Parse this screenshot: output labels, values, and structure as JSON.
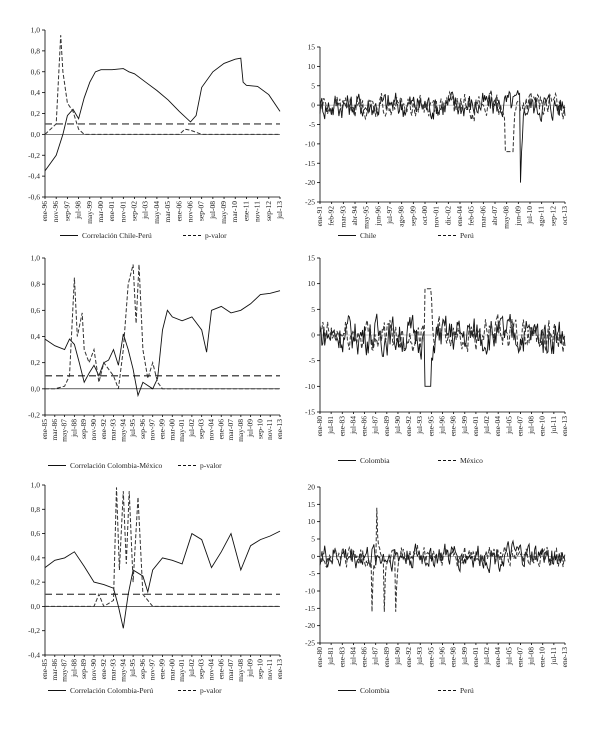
{
  "panels": [
    {
      "id": "p1",
      "chart_data": {
        "type": "line",
        "yticks": [
          "1,0",
          "0,8",
          "0,6",
          "0,4",
          "0,2",
          "0,0",
          "-0,2",
          "-0,4",
          "-0,6"
        ],
        "ylim": [
          -0.6,
          1.0
        ],
        "xlabels": [
          "ene-96",
          "nov-96",
          "sep-97",
          "jul-98",
          "may-99",
          "mar-00",
          "ene-01",
          "nov-01",
          "sep-02",
          "jul-03",
          "may-04",
          "mar-05",
          "ene-06",
          "nov-06",
          "sep-07",
          "jul-08",
          "may-09",
          "mar-10",
          "ene-11",
          "nov-11",
          "sep-12",
          "jul-13"
        ],
        "threshold": 0.1,
        "series": [
          {
            "name": "Correlación Chile-Perú",
            "style": "solid",
            "values": [
              [
                0,
                -0.35
              ],
              [
                1,
                -0.2
              ],
              [
                1.6,
                0.0
              ],
              [
                2,
                0.18
              ],
              [
                2.5,
                0.24
              ],
              [
                3,
                0.15
              ],
              [
                3.5,
                0.35
              ],
              [
                4,
                0.5
              ],
              [
                4.5,
                0.6
              ],
              [
                5,
                0.62
              ],
              [
                6,
                0.62
              ],
              [
                7,
                0.63
              ],
              [
                7.5,
                0.6
              ],
              [
                8,
                0.58
              ],
              [
                9,
                0.5
              ],
              [
                10,
                0.42
              ],
              [
                11,
                0.33
              ],
              [
                12,
                0.22
              ],
              [
                13,
                0.12
              ],
              [
                13.5,
                0.18
              ],
              [
                14,
                0.45
              ],
              [
                15,
                0.6
              ],
              [
                16,
                0.68
              ],
              [
                17,
                0.72
              ],
              [
                17.5,
                0.73
              ],
              [
                17.7,
                0.5
              ],
              [
                18,
                0.47
              ],
              [
                19,
                0.46
              ],
              [
                20,
                0.38
              ],
              [
                21,
                0.22
              ]
            ]
          },
          {
            "name": "p-valor",
            "style": "dashed",
            "values": [
              [
                0,
                0.0
              ],
              [
                1,
                0.1
              ],
              [
                1.4,
                0.95
              ],
              [
                1.6,
                0.6
              ],
              [
                2,
                0.3
              ],
              [
                2.5,
                0.22
              ],
              [
                3,
                0.05
              ],
              [
                3.5,
                0.0
              ],
              [
                12,
                0.0
              ],
              [
                12.5,
                0.05
              ],
              [
                13,
                0.04
              ],
              [
                14,
                0.0
              ],
              [
                21,
                0.0
              ]
            ]
          }
        ]
      }
    },
    {
      "id": "p2",
      "chart_data": {
        "type": "line",
        "yticks": [
          "15",
          "10",
          "5",
          "0",
          "-5",
          "-10",
          "-15",
          "-20",
          "-25"
        ],
        "ylim": [
          -25,
          15
        ],
        "xlabels": [
          "ene-91",
          "feb-92",
          "mar-93",
          "abr-94",
          "may-95",
          "jun-96",
          "jul-97",
          "ago-98",
          "sep-99",
          "oct-00",
          "nov-01",
          "dic-02",
          "ene-04",
          "feb-05",
          "mar-06",
          "abr-07",
          "may-08",
          "jun-09",
          "jul-10",
          "ago-11",
          "sep-12",
          "oct-13"
        ],
        "series": [
          {
            "name": "Chile",
            "style": "solid"
          },
          {
            "name": "Perú",
            "style": "dashed"
          }
        ]
      }
    },
    {
      "id": "p3",
      "chart_data": {
        "type": "line",
        "yticks": [
          "1,0",
          "0,8",
          "0,6",
          "0,4",
          "0,2",
          "0,0",
          "-0,2"
        ],
        "ylim": [
          -0.2,
          1.0
        ],
        "xlabels": [
          "ene-85",
          "mar-86",
          "may-87",
          "jul-88",
          "sep-89",
          "nov-90",
          "ene-92",
          "mar-93",
          "may-94",
          "jul-95",
          "sep-96",
          "nov-97",
          "ene-99",
          "mar-00",
          "may-01",
          "jul-02",
          "sep-03",
          "nov-04",
          "ene-06",
          "mar-07",
          "may-08",
          "jul-09",
          "sep-10",
          "nov-11",
          "ene-13"
        ],
        "threshold": 0.1,
        "series": [
          {
            "name": "Correlación Colombia-México",
            "style": "solid",
            "values": [
              [
                0,
                0.38
              ],
              [
                1,
                0.33
              ],
              [
                2,
                0.3
              ],
              [
                2.5,
                0.38
              ],
              [
                3,
                0.34
              ],
              [
                3.5,
                0.2
              ],
              [
                4,
                0.05
              ],
              [
                4.5,
                0.12
              ],
              [
                5,
                0.18
              ],
              [
                5.5,
                0.1
              ],
              [
                6,
                0.2
              ],
              [
                6.5,
                0.22
              ],
              [
                7,
                0.3
              ],
              [
                7.5,
                0.18
              ],
              [
                8,
                0.42
              ],
              [
                8.5,
                0.3
              ],
              [
                9,
                0.15
              ],
              [
                9.5,
                -0.05
              ],
              [
                10,
                0.05
              ],
              [
                11,
                0.0
              ],
              [
                11.5,
                0.08
              ],
              [
                12,
                0.45
              ],
              [
                12.5,
                0.6
              ],
              [
                13,
                0.55
              ],
              [
                14,
                0.52
              ],
              [
                15,
                0.55
              ],
              [
                16,
                0.45
              ],
              [
                16.5,
                0.28
              ],
              [
                17,
                0.6
              ],
              [
                18,
                0.63
              ],
              [
                19,
                0.58
              ],
              [
                20,
                0.6
              ],
              [
                21,
                0.65
              ],
              [
                22,
                0.72
              ],
              [
                23,
                0.73
              ],
              [
                24,
                0.75
              ]
            ]
          },
          {
            "name": "p-valor",
            "style": "dashed",
            "values": [
              [
                0,
                0.0
              ],
              [
                1,
                0.0
              ],
              [
                2,
                0.02
              ],
              [
                2.5,
                0.1
              ],
              [
                3,
                0.85
              ],
              [
                3.3,
                0.4
              ],
              [
                3.8,
                0.58
              ],
              [
                4,
                0.3
              ],
              [
                4.5,
                0.2
              ],
              [
                5,
                0.3
              ],
              [
                5.5,
                0.05
              ],
              [
                6,
                0.2
              ],
              [
                7,
                0.1
              ],
              [
                7.5,
                0.0
              ],
              [
                8,
                0.3
              ],
              [
                8.5,
                0.8
              ],
              [
                9,
                0.95
              ],
              [
                9.3,
                0.5
              ],
              [
                9.6,
                0.95
              ],
              [
                10,
                0.3
              ],
              [
                10.5,
                0.08
              ],
              [
                11,
                0.2
              ],
              [
                11.5,
                0.05
              ],
              [
                12,
                0.0
              ],
              [
                24,
                0.0
              ]
            ]
          }
        ]
      }
    },
    {
      "id": "p4",
      "chart_data": {
        "type": "line",
        "yticks": [
          "15",
          "10",
          "5",
          "0",
          "-5",
          "-10",
          "-15"
        ],
        "ylim": [
          -15,
          15
        ],
        "xlabels": [
          "ene-80",
          "jul-81",
          "ene-83",
          "jul-84",
          "ene-86",
          "jul-87",
          "ene-89",
          "jul-90",
          "ene-92",
          "jul-93",
          "ene-95",
          "jul-96",
          "ene-98",
          "jul-99",
          "ene-01",
          "jul-02",
          "ene-04",
          "jul-05",
          "ene-07",
          "jul-08",
          "ene-10",
          "jul-11",
          "ene-13"
        ],
        "series": [
          {
            "name": "Colombia",
            "style": "solid"
          },
          {
            "name": "México",
            "style": "dashed"
          }
        ]
      }
    },
    {
      "id": "p5",
      "chart_data": {
        "type": "line",
        "yticks": [
          "1,0",
          "0,8",
          "0,6",
          "0,4",
          "0,2",
          "0,0",
          "-0,2",
          "-0,4"
        ],
        "ylim": [
          -0.4,
          1.0
        ],
        "xlabels": [
          "ene-85",
          "mar-86",
          "may-87",
          "jul-88",
          "sep-89",
          "nov-90",
          "ene-92",
          "mar-93",
          "may-94",
          "jul-95",
          "sep-96",
          "nov-97",
          "ene-99",
          "mar-00",
          "may-01",
          "jul-02",
          "sep-03",
          "nov-04",
          "ene-06",
          "mar-07",
          "may-08",
          "jul-09",
          "sep-10",
          "nov-11",
          "ene-13"
        ],
        "threshold": 0.1,
        "series": [
          {
            "name": "Correlación Colombia-Perú",
            "style": "solid",
            "values": [
              [
                0,
                0.32
              ],
              [
                1,
                0.38
              ],
              [
                2,
                0.4
              ],
              [
                3,
                0.45
              ],
              [
                4,
                0.33
              ],
              [
                5,
                0.2
              ],
              [
                6,
                0.18
              ],
              [
                7,
                0.15
              ],
              [
                7.5,
                0.0
              ],
              [
                8,
                -0.18
              ],
              [
                8.5,
                0.1
              ],
              [
                9,
                0.3
              ],
              [
                10,
                0.25
              ],
              [
                10.5,
                0.12
              ],
              [
                11,
                0.3
              ],
              [
                12,
                0.4
              ],
              [
                13,
                0.38
              ],
              [
                14,
                0.35
              ],
              [
                15,
                0.6
              ],
              [
                16,
                0.55
              ],
              [
                17,
                0.32
              ],
              [
                18,
                0.45
              ],
              [
                19,
                0.6
              ],
              [
                20,
                0.3
              ],
              [
                21,
                0.5
              ],
              [
                22,
                0.55
              ],
              [
                23,
                0.58
              ],
              [
                24,
                0.62
              ]
            ]
          },
          {
            "name": "p-valor",
            "style": "dashed",
            "values": [
              [
                0,
                0.0
              ],
              [
                5,
                0.0
              ],
              [
                5.5,
                0.1
              ],
              [
                6,
                0.0
              ],
              [
                7,
                0.05
              ],
              [
                7.3,
                0.98
              ],
              [
                7.6,
                0.3
              ],
              [
                8,
                0.95
              ],
              [
                8.3,
                0.35
              ],
              [
                8.6,
                0.95
              ],
              [
                9,
                0.2
              ],
              [
                9.5,
                0.9
              ],
              [
                10,
                0.1
              ],
              [
                11,
                0.0
              ],
              [
                24,
                0.0
              ]
            ]
          }
        ]
      }
    },
    {
      "id": "p6",
      "chart_data": {
        "type": "line",
        "yticks": [
          "20",
          "15",
          "10",
          "5",
          "0",
          "-5",
          "-10",
          "-15",
          "-20",
          "-25"
        ],
        "ylim": [
          -25,
          20
        ],
        "xlabels": [
          "ene-80",
          "jul-81",
          "ene-83",
          "jul-84",
          "ene-86",
          "jul-87",
          "ene-89",
          "jul-90",
          "ene-92",
          "jul-93",
          "ene-95",
          "jul-96",
          "ene-98",
          "jul-99",
          "ene-01",
          "jul-02",
          "ene-04",
          "jul-05",
          "ene-07",
          "jul-08",
          "ene-10",
          "jul-11",
          "ene-13"
        ],
        "series": [
          {
            "name": "Colombia",
            "style": "solid"
          },
          {
            "name": "Perú",
            "style": "dashed"
          }
        ]
      }
    }
  ]
}
